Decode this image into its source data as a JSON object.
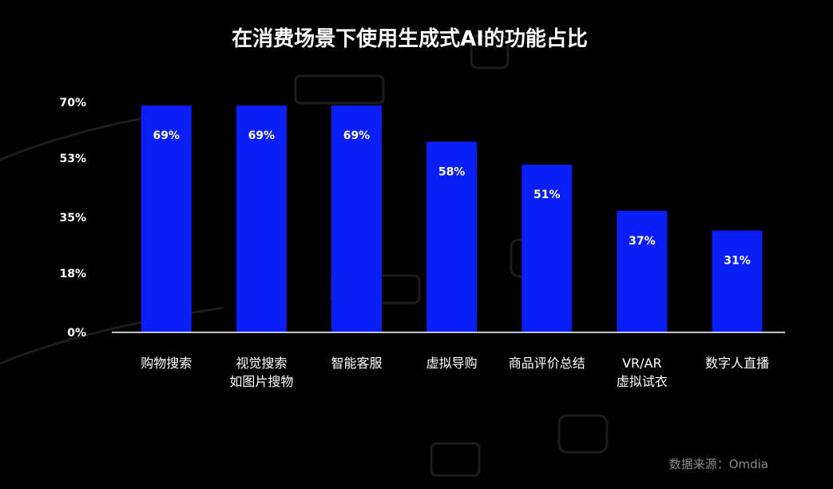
{
  "chart_data": {
    "type": "bar",
    "title": "在消费场景下使用生成式AI的功能占比",
    "categories": [
      [
        "购物搜索"
      ],
      [
        "视觉搜索",
        "如图片搜物"
      ],
      [
        "智能客服"
      ],
      [
        "虚拟导购"
      ],
      [
        "商品评价总结"
      ],
      [
        "VR/AR",
        "虚拟试衣"
      ],
      [
        "数字人直播"
      ]
    ],
    "values": [
      69,
      69,
      69,
      58,
      51,
      37,
      31
    ],
    "value_labels": [
      "69%",
      "69%",
      "69%",
      "58%",
      "51%",
      "37%",
      "31%"
    ],
    "yticks": [
      0,
      18,
      35,
      53,
      70
    ],
    "ytick_labels": [
      "0%",
      "18%",
      "35%",
      "53%",
      "70%"
    ],
    "ylim": [
      0,
      70
    ],
    "xlabel": "",
    "ylabel": "",
    "grid": false,
    "legend": "none",
    "bar_color": "#0a1ef5",
    "source": "数据来源：Omdia"
  },
  "colors": {
    "background": "#000000",
    "bar": "#0a1ef5",
    "text": "#ffffff",
    "source_text": "#8a8a8a",
    "watermark": "#1c1c1c"
  }
}
